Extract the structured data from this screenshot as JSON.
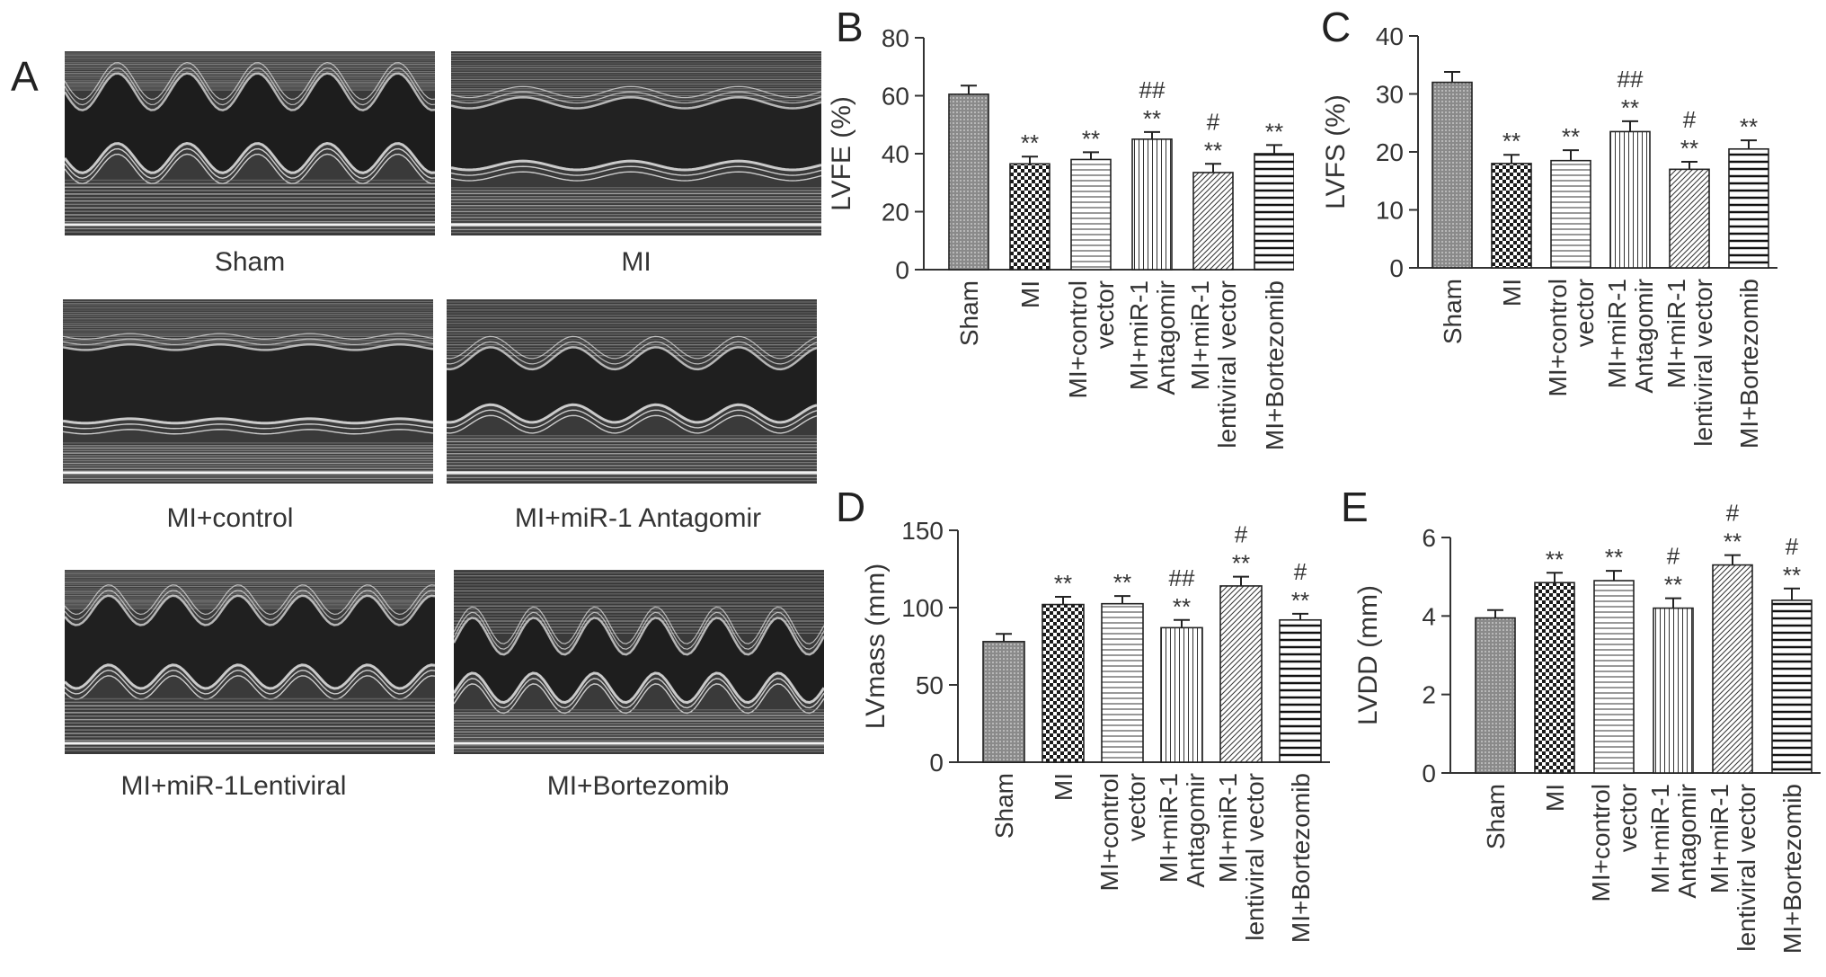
{
  "figure": {
    "panel_a": {
      "letter": "A",
      "images": [
        {
          "label": "Sham",
          "pattern": "sham"
        },
        {
          "label": "MI",
          "pattern": "mi"
        },
        {
          "label": "MI+control",
          "pattern": "control"
        },
        {
          "label": "MI+miR-1 Antagomir",
          "pattern": "antagomir"
        },
        {
          "label": "MI+miR-1Lentiviral",
          "pattern": "lentiviral"
        },
        {
          "label": "MI+Bortezomib",
          "pattern": "bortezomib"
        }
      ]
    }
  },
  "chart_data": [
    {
      "panel": "B",
      "type": "bar",
      "ylabel": "LVFE (%)",
      "ylim": [
        0,
        80
      ],
      "yticks": [
        0,
        20,
        40,
        60,
        80
      ],
      "categories": [
        [
          "Sham"
        ],
        [
          "MI"
        ],
        [
          "MI+control",
          "vector"
        ],
        [
          "MI+miR-1",
          "Antagomir"
        ],
        [
          "MI+miR-1",
          "lentiviral vector"
        ],
        [
          "MI+Bortezomib"
        ]
      ],
      "values": [
        60.5,
        36.5,
        38,
        45,
        33.5,
        40
      ],
      "errors": [
        3,
        2.5,
        2.5,
        2.5,
        3,
        3
      ],
      "stars": [
        "",
        "**",
        "**",
        "**",
        "**",
        "**"
      ],
      "hashes": [
        "",
        "",
        "",
        "##",
        "#",
        ""
      ],
      "patterns": [
        "crosshatch",
        "checker",
        "hlines",
        "vlines",
        "diag",
        "hlines-wide"
      ]
    },
    {
      "panel": "C",
      "type": "bar",
      "ylabel": "LVFS (%)",
      "ylim": [
        0,
        40
      ],
      "yticks": [
        0,
        10,
        20,
        30,
        40
      ],
      "categories": [
        [
          "Sham"
        ],
        [
          "MI"
        ],
        [
          "MI+control",
          "vector"
        ],
        [
          "MI+miR-1",
          "Antagomir"
        ],
        [
          "MI+miR-1",
          "lentiviral vector"
        ],
        [
          "MI+Bortezomib"
        ]
      ],
      "values": [
        32,
        18,
        18.5,
        23.5,
        17,
        20.5
      ],
      "errors": [
        1.8,
        1.5,
        1.8,
        1.8,
        1.3,
        1.5
      ],
      "stars": [
        "",
        "**",
        "**",
        "**",
        "**",
        "**"
      ],
      "hashes": [
        "",
        "",
        "",
        "##",
        "#",
        ""
      ],
      "patterns": [
        "crosshatch",
        "checker",
        "hlines",
        "vlines",
        "diag",
        "hlines-wide"
      ]
    },
    {
      "panel": "D",
      "type": "bar",
      "ylabel": "LVmass (mm)",
      "ylim": [
        0,
        150
      ],
      "yticks": [
        0,
        50,
        100,
        150
      ],
      "categories": [
        [
          "Sham"
        ],
        [
          "MI"
        ],
        [
          "MI+control",
          "vector"
        ],
        [
          "MI+miR-1",
          "Antagomir"
        ],
        [
          "MI+miR-1",
          "lentiviral vector"
        ],
        [
          "MI+Bortezomib"
        ]
      ],
      "values": [
        78,
        102,
        102.5,
        87,
        114,
        92
      ],
      "errors": [
        5,
        5,
        5,
        5,
        6,
        4
      ],
      "stars": [
        "",
        "**",
        "**",
        "**",
        "**",
        "**"
      ],
      "hashes": [
        "",
        "",
        "",
        "##",
        "#",
        "#"
      ],
      "patterns": [
        "crosshatch",
        "checker",
        "hlines",
        "vlines",
        "diag",
        "hlines-wide"
      ]
    },
    {
      "panel": "E",
      "type": "bar",
      "ylabel": "LVDD (mm)",
      "ylim": [
        0,
        6
      ],
      "yticks": [
        0,
        2,
        4,
        6
      ],
      "categories": [
        [
          "Sham"
        ],
        [
          "MI"
        ],
        [
          "MI+control",
          "vector"
        ],
        [
          "MI+miR-1",
          "Antagomir"
        ],
        [
          "MI+miR-1",
          "lentiviral vector"
        ],
        [
          "MI+Bortezomib"
        ]
      ],
      "values": [
        3.95,
        4.85,
        4.9,
        4.2,
        5.3,
        4.4
      ],
      "errors": [
        0.2,
        0.25,
        0.25,
        0.25,
        0.25,
        0.3
      ],
      "stars": [
        "",
        "**",
        "**",
        "**",
        "**",
        "**"
      ],
      "hashes": [
        "",
        "",
        "",
        "#",
        "#",
        "#"
      ],
      "patterns": [
        "crosshatch",
        "checker",
        "hlines",
        "vlines",
        "diag",
        "hlines-wide"
      ]
    }
  ]
}
